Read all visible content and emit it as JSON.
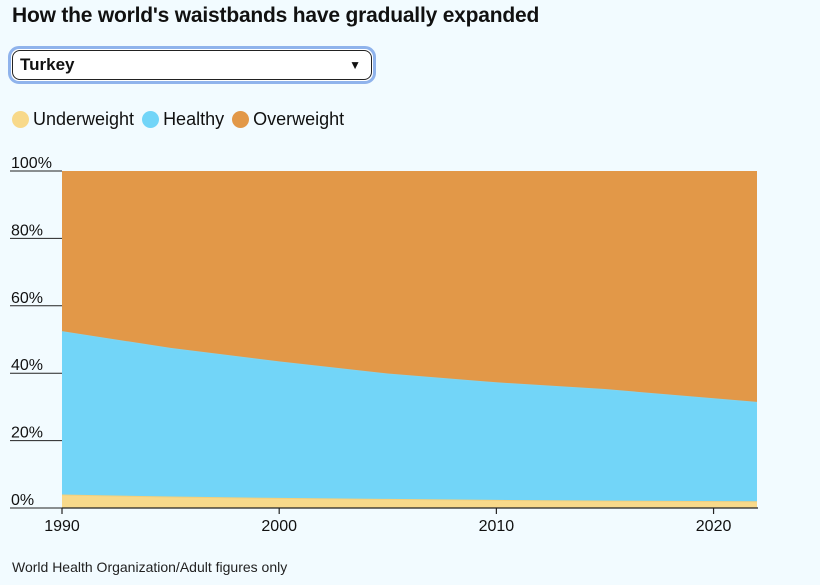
{
  "title": "How the world's waistbands have gradually expanded",
  "country_select": {
    "value": "Turkey"
  },
  "legend": [
    {
      "label": "Underweight",
      "color": "#f8d98a"
    },
    {
      "label": "Healthy",
      "color": "#72d5f8"
    },
    {
      "label": "Overweight",
      "color": "#e29848"
    }
  ],
  "source": "World Health Organization/Adult figures only",
  "chart_data": {
    "type": "area",
    "stacked": true,
    "x": [
      1990,
      1995,
      2000,
      2005,
      2010,
      2015,
      2022
    ],
    "series": [
      {
        "name": "Underweight",
        "values": [
          4.0,
          3.4,
          3.0,
          2.7,
          2.4,
          2.2,
          2.0
        ],
        "color": "#f8d98a"
      },
      {
        "name": "Healthy",
        "values": [
          48.5,
          44.1,
          40.5,
          37.2,
          34.9,
          33.1,
          29.5
        ],
        "color": "#72d5f8"
      },
      {
        "name": "Overweight",
        "values": [
          47.5,
          52.5,
          56.5,
          60.1,
          62.7,
          64.7,
          68.5
        ],
        "color": "#e29848"
      }
    ],
    "xlim": [
      1990,
      2022
    ],
    "ylim": [
      0,
      100
    ],
    "x_ticks": [
      1990,
      2000,
      2010,
      2020
    ],
    "y_ticks": [
      {
        "value": 0,
        "label": "0%"
      },
      {
        "value": 20,
        "label": "20%"
      },
      {
        "value": 40,
        "label": "40%"
      },
      {
        "value": 60,
        "label": "60%"
      },
      {
        "value": 80,
        "label": "80%"
      },
      {
        "value": 100,
        "label": "100%"
      }
    ],
    "title": "How the world's waistbands have gradually expanded",
    "xlabel": "",
    "ylabel": ""
  }
}
